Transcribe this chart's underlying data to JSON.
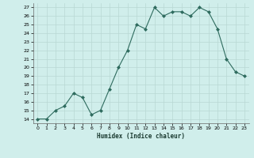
{
  "x": [
    0,
    1,
    2,
    3,
    4,
    5,
    6,
    7,
    8,
    9,
    10,
    11,
    12,
    13,
    14,
    15,
    16,
    17,
    18,
    19,
    20,
    21,
    22,
    23
  ],
  "y": [
    14,
    14,
    15,
    15.5,
    17,
    16.5,
    14.5,
    15,
    17.5,
    20,
    22,
    25,
    24.5,
    27,
    26,
    26.5,
    26.5,
    26,
    27,
    26.5,
    24.5,
    21,
    19.5,
    19
  ],
  "line_color": "#2e6b5e",
  "marker_color": "#2e6b5e",
  "bg_color": "#d0eeeb",
  "grid_color": "#b8d8d4",
  "xlabel": "Humidex (Indice chaleur)",
  "xlim": [
    -0.5,
    23.5
  ],
  "ylim": [
    13.5,
    27.5
  ],
  "yticks": [
    14,
    15,
    16,
    17,
    18,
    19,
    20,
    21,
    22,
    23,
    24,
    25,
    26,
    27
  ],
  "xticks": [
    0,
    1,
    2,
    3,
    4,
    5,
    6,
    7,
    8,
    9,
    10,
    11,
    12,
    13,
    14,
    15,
    16,
    17,
    18,
    19,
    20,
    21,
    22,
    23
  ]
}
